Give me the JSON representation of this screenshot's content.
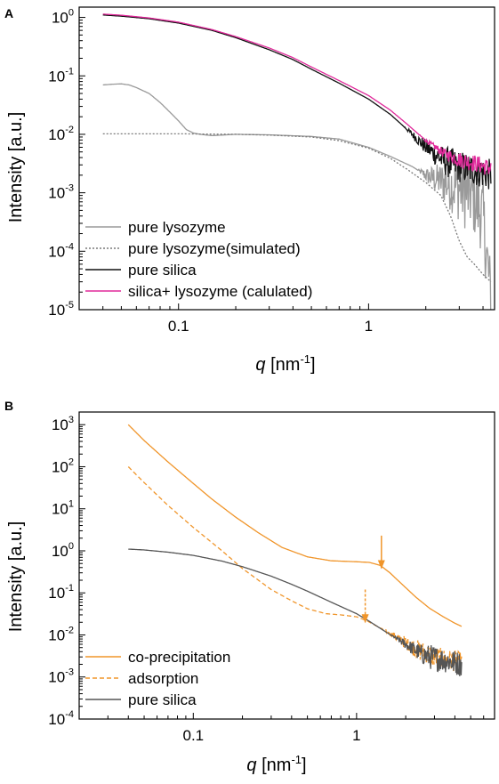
{
  "chart_data": [
    {
      "panel_label": "A",
      "type": "line",
      "xscale": "log",
      "yscale": "log",
      "xlim": [
        0.03,
        4.6
      ],
      "ylim": [
        1e-05,
        1.5
      ],
      "xlabel_symbol": "q",
      "xlabel_unit": " [nm",
      "xlabel_exp": "-1",
      "xlabel_close": "]",
      "ylabel": "Intensity [a.u.]",
      "x_ticks": [
        {
          "value": 0.1,
          "label": "0.1"
        },
        {
          "value": 1,
          "label": "1"
        }
      ],
      "y_ticks": [
        {
          "value": 1,
          "base": "10",
          "exp": "0"
        },
        {
          "value": 0.1,
          "base": "10",
          "exp": "-1"
        },
        {
          "value": 0.01,
          "base": "10",
          "exp": "-2"
        },
        {
          "value": 0.001,
          "base": "10",
          "exp": "-3"
        },
        {
          "value": 0.0001,
          "base": "10",
          "exp": "-4"
        },
        {
          "value": 1e-05,
          "base": "10",
          "exp": "-5"
        }
      ],
      "legend_position": "bottom-left",
      "series": [
        {
          "name": "pure lysozyme",
          "color": "#9a9a9a",
          "dash": "solid",
          "x": [
            0.04,
            0.045,
            0.05,
            0.055,
            0.06,
            0.07,
            0.08,
            0.09,
            0.1,
            0.11,
            0.12,
            0.13,
            0.15,
            0.2,
            0.3,
            0.5,
            0.7,
            1.0,
            1.3,
            1.7,
            2.0,
            2.5,
            3.0,
            3.5,
            4.0,
            4.4
          ],
          "y": [
            0.07,
            0.072,
            0.073,
            0.07,
            0.063,
            0.05,
            0.035,
            0.024,
            0.017,
            0.012,
            0.0105,
            0.01,
            0.0095,
            0.01,
            0.0098,
            0.0092,
            0.0083,
            0.006,
            0.0042,
            0.0028,
            0.002,
            0.0015,
            0.0012,
            0.0009,
            0.0004,
            1.5e-05
          ],
          "noise_start": 1.8,
          "noise_amp": 1.3
        },
        {
          "name": "pure lysozyme(simulated)",
          "color": "#7a7a7a",
          "dash": "dotted",
          "x": [
            0.04,
            0.1,
            0.2,
            0.3,
            0.5,
            0.7,
            1.0,
            1.3,
            1.6,
            2.0,
            2.4,
            2.7,
            3.0,
            3.3,
            3.6,
            4.0,
            4.4
          ],
          "y": [
            0.0102,
            0.0102,
            0.01,
            0.0097,
            0.009,
            0.0078,
            0.0058,
            0.0039,
            0.0025,
            0.0015,
            0.0009,
            0.0004,
            0.00015,
            8e-05,
            6e-05,
            4e-05,
            3e-05
          ]
        },
        {
          "name": "pure silica",
          "color": "#111111",
          "dash": "solid",
          "x": [
            0.04,
            0.05,
            0.07,
            0.1,
            0.15,
            0.2,
            0.3,
            0.4,
            0.5,
            0.7,
            1.0,
            1.3,
            1.6,
            2.0,
            2.5,
            3.0,
            3.5,
            4.0,
            4.4
          ],
          "y": [
            1.1,
            1.05,
            0.95,
            0.8,
            0.6,
            0.45,
            0.28,
            0.19,
            0.13,
            0.075,
            0.04,
            0.022,
            0.012,
            0.006,
            0.0035,
            0.0028,
            0.0025,
            0.0022,
            0.002
          ],
          "noise_start": 1.5,
          "noise_amp": 0.55
        },
        {
          "name": "silica+ lysozyme (calulated)",
          "color": "#e0299a",
          "dash": "solid",
          "x": [
            0.04,
            0.05,
            0.07,
            0.1,
            0.15,
            0.2,
            0.3,
            0.4,
            0.5,
            0.7,
            1.0,
            1.3,
            1.6,
            2.0,
            2.5,
            3.0,
            3.5,
            4.0,
            4.4
          ],
          "y": [
            1.14,
            1.09,
            0.98,
            0.83,
            0.62,
            0.47,
            0.3,
            0.205,
            0.142,
            0.083,
            0.046,
            0.026,
            0.0148,
            0.0078,
            0.0047,
            0.0037,
            0.0033,
            0.0029,
            0.0026
          ],
          "noise_start": 1.8,
          "noise_amp": 0.3
        }
      ]
    },
    {
      "panel_label": "B",
      "type": "line",
      "xscale": "log",
      "yscale": "log",
      "xlim": [
        0.02,
        7
      ],
      "ylim": [
        0.0001,
        2000
      ],
      "xlabel_symbol": "q",
      "xlabel_unit": " [nm",
      "xlabel_exp": "-1",
      "xlabel_close": "]",
      "ylabel": "Intensity [a.u.]",
      "x_ticks": [
        {
          "value": 0.1,
          "label": "0.1"
        },
        {
          "value": 1,
          "label": "1"
        }
      ],
      "y_ticks": [
        {
          "value": 1000,
          "base": "10",
          "exp": "3"
        },
        {
          "value": 100,
          "base": "10",
          "exp": "2"
        },
        {
          "value": 10,
          "base": "10",
          "exp": "1"
        },
        {
          "value": 1,
          "base": "10",
          "exp": "0"
        },
        {
          "value": 0.1,
          "base": "10",
          "exp": "-1"
        },
        {
          "value": 0.01,
          "base": "10",
          "exp": "-2"
        },
        {
          "value": 0.001,
          "base": "10",
          "exp": "-3"
        },
        {
          "value": 0.0001,
          "base": "10",
          "exp": "-4"
        }
      ],
      "legend_position": "bottom-left",
      "series": [
        {
          "name": "co-precipitation",
          "color": "#f0952a",
          "dash": "solid",
          "x": [
            0.04,
            0.05,
            0.07,
            0.1,
            0.13,
            0.18,
            0.25,
            0.35,
            0.5,
            0.7,
            1.0,
            1.2,
            1.4,
            1.6,
            1.9,
            2.3,
            2.8,
            3.4,
            4.0,
            4.4
          ],
          "y": [
            1000,
            420,
            130,
            40,
            17,
            6.5,
            2.7,
            1.2,
            0.72,
            0.58,
            0.55,
            0.53,
            0.45,
            0.3,
            0.16,
            0.08,
            0.043,
            0.027,
            0.019,
            0.016
          ]
        },
        {
          "name": "adsorption",
          "color": "#f0952a",
          "dash": "dashed",
          "x": [
            0.04,
            0.05,
            0.07,
            0.1,
            0.15,
            0.2,
            0.3,
            0.4,
            0.5,
            0.65,
            0.8,
            1.0,
            1.15,
            1.3,
            1.6,
            2.0,
            2.5,
            3.0,
            3.5,
            4.0,
            4.4
          ],
          "y": [
            100,
            42,
            12,
            3.6,
            1.0,
            0.38,
            0.12,
            0.065,
            0.042,
            0.032,
            0.03,
            0.027,
            0.022,
            0.017,
            0.011,
            0.0065,
            0.004,
            0.003,
            0.0026,
            0.0024,
            0.0022
          ],
          "noise_start": 1.4,
          "noise_amp": 0.5
        },
        {
          "name": "pure silica",
          "color": "#555555",
          "dash": "solid",
          "x": [
            0.04,
            0.05,
            0.07,
            0.1,
            0.15,
            0.2,
            0.3,
            0.4,
            0.5,
            0.7,
            1.0,
            1.2,
            1.5,
            2.0,
            2.5,
            3.0,
            3.5,
            4.0,
            4.4
          ],
          "y": [
            1.1,
            1.05,
            0.93,
            0.78,
            0.57,
            0.42,
            0.25,
            0.16,
            0.11,
            0.06,
            0.032,
            0.021,
            0.012,
            0.006,
            0.0035,
            0.0028,
            0.0025,
            0.0022,
            0.002
          ],
          "noise_start": 1.6,
          "noise_amp": 0.6
        }
      ],
      "annotations": [
        {
          "type": "arrow",
          "style": "solid",
          "color": "#f0952a",
          "x": 1.42,
          "y_tip": 0.6,
          "y_tail": 2.3
        },
        {
          "type": "arrow",
          "style": "dashed",
          "color": "#f0952a",
          "x": 1.13,
          "y_tip": 0.031,
          "y_tail": 0.12
        }
      ]
    }
  ]
}
